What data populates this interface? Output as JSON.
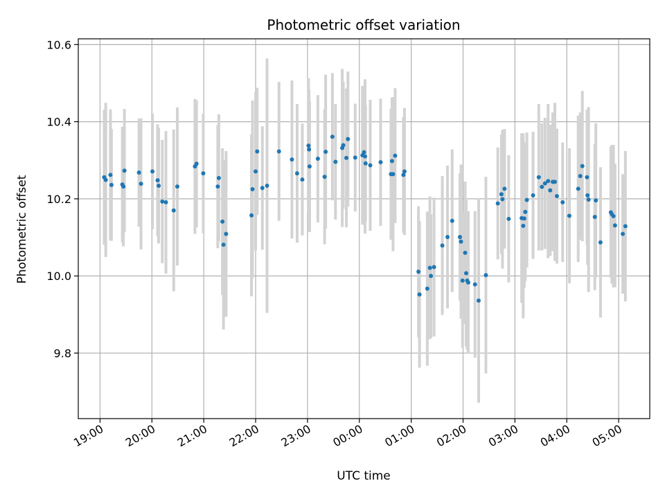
{
  "chart_data": {
    "type": "scatter",
    "title": "Photometric offset variation",
    "xlabel": "UTC time",
    "ylabel": "Photometric offset",
    "xlim": [
      -0.42,
      10.6
    ],
    "ylim": [
      9.63,
      10.615
    ],
    "x_ticks": [
      {
        "value": 0,
        "label": "19:00"
      },
      {
        "value": 1,
        "label": "20:00"
      },
      {
        "value": 2,
        "label": "21:00"
      },
      {
        "value": 3,
        "label": "22:00"
      },
      {
        "value": 4,
        "label": "23:00"
      },
      {
        "value": 5,
        "label": "00:00"
      },
      {
        "value": 6,
        "label": "01:00"
      },
      {
        "value": 7,
        "label": "02:00"
      },
      {
        "value": 8,
        "label": "03:00"
      },
      {
        "value": 9,
        "label": "04:00"
      },
      {
        "value": 10,
        "label": "05:00"
      }
    ],
    "y_ticks": [
      {
        "value": 9.8,
        "label": "9.8"
      },
      {
        "value": 10.0,
        "label": "10.0"
      },
      {
        "value": 10.2,
        "label": "10.2"
      },
      {
        "value": 10.4,
        "label": "10.4"
      },
      {
        "value": 10.6,
        "label": "10.6"
      }
    ],
    "grid": true,
    "colors": {
      "point": "#1f77b4",
      "errorbar": "#d3d3d3",
      "grid": "#b0b0b0",
      "axis": "#000000"
    },
    "x_unit": "hours since 19:00 UTC",
    "series": [
      {
        "name": "Photometric offset",
        "points": [
          [
            0.08,
            10.256,
            0.175
          ],
          [
            0.11,
            10.249,
            0.2
          ],
          [
            0.2,
            10.262,
            0.17
          ],
          [
            0.22,
            10.236,
            0.145
          ],
          [
            0.43,
            10.237,
            0.15
          ],
          [
            0.45,
            10.232,
            0.155
          ],
          [
            0.47,
            10.273,
            0.16
          ],
          [
            0.75,
            10.268,
            0.14
          ],
          [
            0.79,
            10.239,
            0.17
          ],
          [
            1.01,
            10.271,
            0.15
          ],
          [
            1.11,
            10.248,
            0.145
          ],
          [
            1.13,
            10.234,
            0.15
          ],
          [
            1.2,
            10.193,
            0.16
          ],
          [
            1.27,
            10.191,
            0.185
          ],
          [
            1.42,
            10.17,
            0.21
          ],
          [
            1.49,
            10.232,
            0.205
          ],
          [
            1.83,
            10.284,
            0.175
          ],
          [
            1.86,
            10.291,
            0.165
          ],
          [
            1.99,
            10.266,
            0.155
          ],
          [
            2.27,
            10.232,
            0.16
          ],
          [
            2.29,
            10.254,
            0.165
          ],
          [
            2.36,
            10.141,
            0.19
          ],
          [
            2.38,
            10.081,
            0.22
          ],
          [
            2.43,
            10.109,
            0.215
          ],
          [
            2.92,
            10.157,
            0.21
          ],
          [
            2.94,
            10.225,
            0.23
          ],
          [
            3.0,
            10.271,
            0.205
          ],
          [
            3.03,
            10.323,
            0.165
          ],
          [
            3.13,
            10.228,
            0.16
          ],
          [
            3.22,
            10.234,
            0.33
          ],
          [
            3.45,
            10.323,
            0.18
          ],
          [
            3.7,
            10.302,
            0.205
          ],
          [
            3.8,
            10.266,
            0.18
          ],
          [
            3.9,
            10.25,
            0.145
          ],
          [
            4.02,
            10.338,
            0.175
          ],
          [
            4.03,
            10.328,
            0.155
          ],
          [
            4.04,
            10.284,
            0.17
          ],
          [
            4.2,
            10.304,
            0.165
          ],
          [
            4.33,
            10.257,
            0.175
          ],
          [
            4.35,
            10.322,
            0.2
          ],
          [
            4.48,
            10.361,
            0.165
          ],
          [
            4.54,
            10.296,
            0.15
          ],
          [
            4.67,
            10.332,
            0.205
          ],
          [
            4.69,
            10.339,
            0.165
          ],
          [
            4.75,
            10.306,
            0.18
          ],
          [
            4.78,
            10.355,
            0.175
          ],
          [
            4.92,
            10.307,
            0.14
          ],
          [
            5.06,
            10.313,
            0.18
          ],
          [
            5.09,
            10.321,
            0.16
          ],
          [
            5.11,
            10.31,
            0.2
          ],
          [
            5.12,
            10.292,
            0.15
          ],
          [
            5.21,
            10.287,
            0.17
          ],
          [
            5.41,
            10.295,
            0.165
          ],
          [
            5.61,
            10.264,
            0.17
          ],
          [
            5.63,
            10.298,
            0.165
          ],
          [
            5.65,
            10.264,
            0.2
          ],
          [
            5.69,
            10.312,
            0.175
          ],
          [
            5.85,
            10.262,
            0.15
          ],
          [
            5.87,
            10.271,
            0.165
          ],
          [
            6.14,
            10.011,
            0.17
          ],
          [
            6.16,
            9.952,
            0.19
          ],
          [
            6.31,
            9.967,
            0.2
          ],
          [
            6.36,
            10.021,
            0.185
          ],
          [
            6.38,
            10.0,
            0.16
          ],
          [
            6.44,
            10.023,
            0.18
          ],
          [
            6.6,
            10.079,
            0.18
          ],
          [
            6.7,
            10.101,
            0.185
          ],
          [
            6.79,
            10.143,
            0.185
          ],
          [
            6.94,
            10.101,
            0.165
          ],
          [
            6.96,
            10.089,
            0.2
          ],
          [
            6.99,
            9.988,
            0.175
          ],
          [
            7.04,
            10.06,
            0.185
          ],
          [
            7.06,
            10.007,
            0.19
          ],
          [
            7.08,
            9.988,
            0.18
          ],
          [
            7.1,
            9.983,
            0.185
          ],
          [
            7.23,
            9.978,
            0.19
          ],
          [
            7.3,
            9.936,
            0.265
          ],
          [
            7.44,
            10.002,
            0.255
          ],
          [
            7.67,
            10.188,
            0.145
          ],
          [
            7.74,
            10.212,
            0.155
          ],
          [
            7.76,
            10.199,
            0.18
          ],
          [
            7.8,
            10.226,
            0.155
          ],
          [
            7.88,
            10.148,
            0.165
          ],
          [
            8.13,
            10.15,
            0.22
          ],
          [
            8.16,
            10.13,
            0.24
          ],
          [
            8.18,
            10.149,
            0.18
          ],
          [
            8.2,
            10.166,
            0.18
          ],
          [
            8.23,
            10.197,
            0.175
          ],
          [
            8.35,
            10.209,
            0.165
          ],
          [
            8.46,
            10.256,
            0.19
          ],
          [
            8.52,
            10.231,
            0.165
          ],
          [
            8.58,
            10.24,
            0.17
          ],
          [
            8.64,
            10.246,
            0.2
          ],
          [
            8.68,
            10.222,
            0.17
          ],
          [
            8.73,
            10.244,
            0.18
          ],
          [
            8.77,
            10.244,
            0.205
          ],
          [
            8.81,
            10.207,
            0.175
          ],
          [
            8.92,
            10.191,
            0.155
          ],
          [
            9.05,
            10.156,
            0.175
          ],
          [
            9.22,
            10.226,
            0.19
          ],
          [
            9.26,
            10.259,
            0.165
          ],
          [
            9.3,
            10.285,
            0.195
          ],
          [
            9.39,
            10.256,
            0.175
          ],
          [
            9.4,
            10.209,
            0.18
          ],
          [
            9.42,
            10.198,
            0.24
          ],
          [
            9.54,
            10.153,
            0.19
          ],
          [
            9.56,
            10.196,
            0.2
          ],
          [
            9.65,
            10.087,
            0.195
          ],
          [
            9.85,
            10.165,
            0.17
          ],
          [
            9.87,
            10.16,
            0.18
          ],
          [
            9.9,
            10.155,
            0.185
          ],
          [
            9.93,
            10.131,
            0.16
          ],
          [
            10.08,
            10.109,
            0.155
          ],
          [
            10.13,
            10.129,
            0.195
          ]
        ]
      }
    ]
  }
}
